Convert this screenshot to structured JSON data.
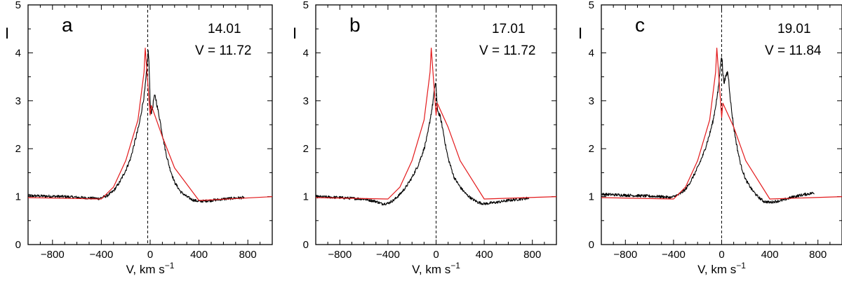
{
  "chart_data": [
    {
      "type": "line",
      "panel_label": "a",
      "date_label": "14.01",
      "v_label": "V = 11.72",
      "xlabel": "V, km s",
      "xlabel_unit_power": "−1",
      "ylabel": "I",
      "xlim": [
        -1000,
        1000
      ],
      "ylim": [
        0,
        5
      ],
      "xticks": [
        -800,
        -400,
        0,
        400,
        800
      ],
      "xtick_labels": [
        "−800",
        "−400",
        "0",
        "400",
        "800"
      ],
      "yticks": [
        0,
        1,
        2,
        3,
        4,
        5
      ],
      "ytick_labels": [
        "0",
        "1",
        "2",
        "3",
        "4",
        "5"
      ],
      "reference_line_x": -20,
      "series": [
        {
          "name": "observed",
          "color": "#000000",
          "x": [
            -1000,
            -700,
            -500,
            -420,
            -350,
            -300,
            -250,
            -200,
            -160,
            -120,
            -90,
            -70,
            -50,
            -40,
            -30,
            -20,
            -15,
            -10,
            -5,
            0,
            5,
            10,
            20,
            30,
            40,
            50,
            60,
            80,
            100,
            130,
            160,
            200,
            250,
            300,
            350,
            400,
            500,
            600,
            700,
            770
          ],
          "y": [
            1.02,
            1.0,
            0.97,
            0.96,
            1.02,
            1.12,
            1.3,
            1.55,
            1.8,
            2.2,
            2.5,
            2.8,
            3.1,
            3.3,
            3.6,
            3.9,
            4.05,
            3.8,
            3.4,
            3.0,
            2.8,
            2.75,
            2.85,
            3.05,
            3.1,
            3.0,
            2.85,
            2.6,
            2.3,
            1.9,
            1.6,
            1.3,
            1.1,
            1.0,
            0.93,
            0.9,
            0.92,
            0.95,
            0.97,
            0.98
          ]
        },
        {
          "name": "model",
          "color": "#e31a1c",
          "x": [
            -1000,
            -400,
            -300,
            -200,
            -100,
            -50,
            -40,
            0,
            10,
            100,
            200,
            400,
            1000
          ],
          "y": [
            0.98,
            0.95,
            1.2,
            1.75,
            2.6,
            3.6,
            4.1,
            2.7,
            2.9,
            2.25,
            1.6,
            0.92,
            1.0
          ]
        }
      ]
    },
    {
      "type": "line",
      "panel_label": "b",
      "date_label": "17.01",
      "v_label": "V = 11.72",
      "xlabel": "V, km s",
      "xlabel_unit_power": "−1",
      "ylabel": "I",
      "xlim": [
        -1000,
        1000
      ],
      "ylim": [
        0,
        5
      ],
      "xticks": [
        -800,
        -400,
        0,
        400,
        800
      ],
      "xtick_labels": [
        "−800",
        "−400",
        "0",
        "400",
        "800"
      ],
      "yticks": [
        0,
        1,
        2,
        3,
        4,
        5
      ],
      "ytick_labels": [
        "0",
        "1",
        "2",
        "3",
        "4",
        "5"
      ],
      "reference_line_x": 0,
      "series": [
        {
          "name": "observed",
          "color": "#000000",
          "x": [
            -1000,
            -800,
            -600,
            -500,
            -450,
            -400,
            -350,
            -300,
            -250,
            -200,
            -150,
            -100,
            -70,
            -50,
            -30,
            -15,
            -5,
            0,
            5,
            10,
            20,
            30,
            40,
            60,
            80,
            100,
            150,
            200,
            250,
            300,
            350,
            400,
            500,
            600,
            700,
            770
          ],
          "y": [
            1.0,
            0.98,
            0.95,
            0.9,
            0.85,
            0.86,
            0.93,
            1.05,
            1.2,
            1.4,
            1.65,
            2.0,
            2.3,
            2.6,
            2.9,
            3.2,
            3.4,
            3.3,
            3.0,
            2.85,
            2.75,
            2.7,
            2.6,
            2.35,
            2.05,
            1.8,
            1.4,
            1.2,
            1.05,
            0.95,
            0.88,
            0.85,
            0.88,
            0.92,
            0.95,
            0.97
          ]
        },
        {
          "name": "model",
          "color": "#e31a1c",
          "x": [
            -1000,
            -400,
            -300,
            -200,
            -100,
            -50,
            -40,
            0,
            10,
            100,
            200,
            400,
            1000
          ],
          "y": [
            0.98,
            0.95,
            1.2,
            1.75,
            2.6,
            3.6,
            4.1,
            2.7,
            2.95,
            2.45,
            1.75,
            0.95,
            1.0
          ]
        }
      ]
    },
    {
      "type": "line",
      "panel_label": "c",
      "date_label": "19.01",
      "v_label": "V = 11.84",
      "xlabel": "V, km s",
      "xlabel_unit_power": "−1",
      "ylabel": "I",
      "xlim": [
        -1000,
        1000
      ],
      "ylim": [
        0,
        5
      ],
      "xticks": [
        -800,
        -400,
        0,
        400,
        800
      ],
      "xtick_labels": [
        "−800",
        "−400",
        "0",
        "400",
        "800"
      ],
      "yticks": [
        0,
        1,
        2,
        3,
        4,
        5
      ],
      "ytick_labels": [
        "0",
        "1",
        "2",
        "3",
        "4",
        "5"
      ],
      "reference_line_x": 0,
      "series": [
        {
          "name": "observed",
          "color": "#000000",
          "x": [
            -1000,
            -700,
            -500,
            -420,
            -350,
            -300,
            -250,
            -200,
            -150,
            -100,
            -70,
            -50,
            -30,
            -15,
            -5,
            0,
            5,
            10,
            20,
            30,
            40,
            50,
            60,
            70,
            80,
            100,
            130,
            160,
            200,
            250,
            300,
            350,
            400,
            500,
            600,
            700,
            770
          ],
          "y": [
            1.05,
            1.02,
            1.0,
            0.98,
            1.05,
            1.15,
            1.35,
            1.6,
            1.9,
            2.3,
            2.6,
            2.9,
            3.2,
            3.6,
            3.9,
            3.95,
            3.8,
            3.55,
            3.4,
            3.45,
            3.55,
            3.6,
            3.4,
            3.1,
            2.85,
            2.45,
            2.0,
            1.65,
            1.35,
            1.15,
            1.0,
            0.9,
            0.88,
            0.92,
            1.0,
            1.05,
            1.08
          ]
        },
        {
          "name": "model",
          "color": "#e31a1c",
          "x": [
            -1000,
            -400,
            -300,
            -200,
            -100,
            -50,
            -40,
            0,
            10,
            100,
            200,
            400,
            1000
          ],
          "y": [
            0.98,
            0.95,
            1.2,
            1.75,
            2.6,
            3.6,
            4.1,
            2.65,
            2.95,
            2.45,
            1.75,
            0.95,
            1.0
          ]
        }
      ]
    }
  ]
}
